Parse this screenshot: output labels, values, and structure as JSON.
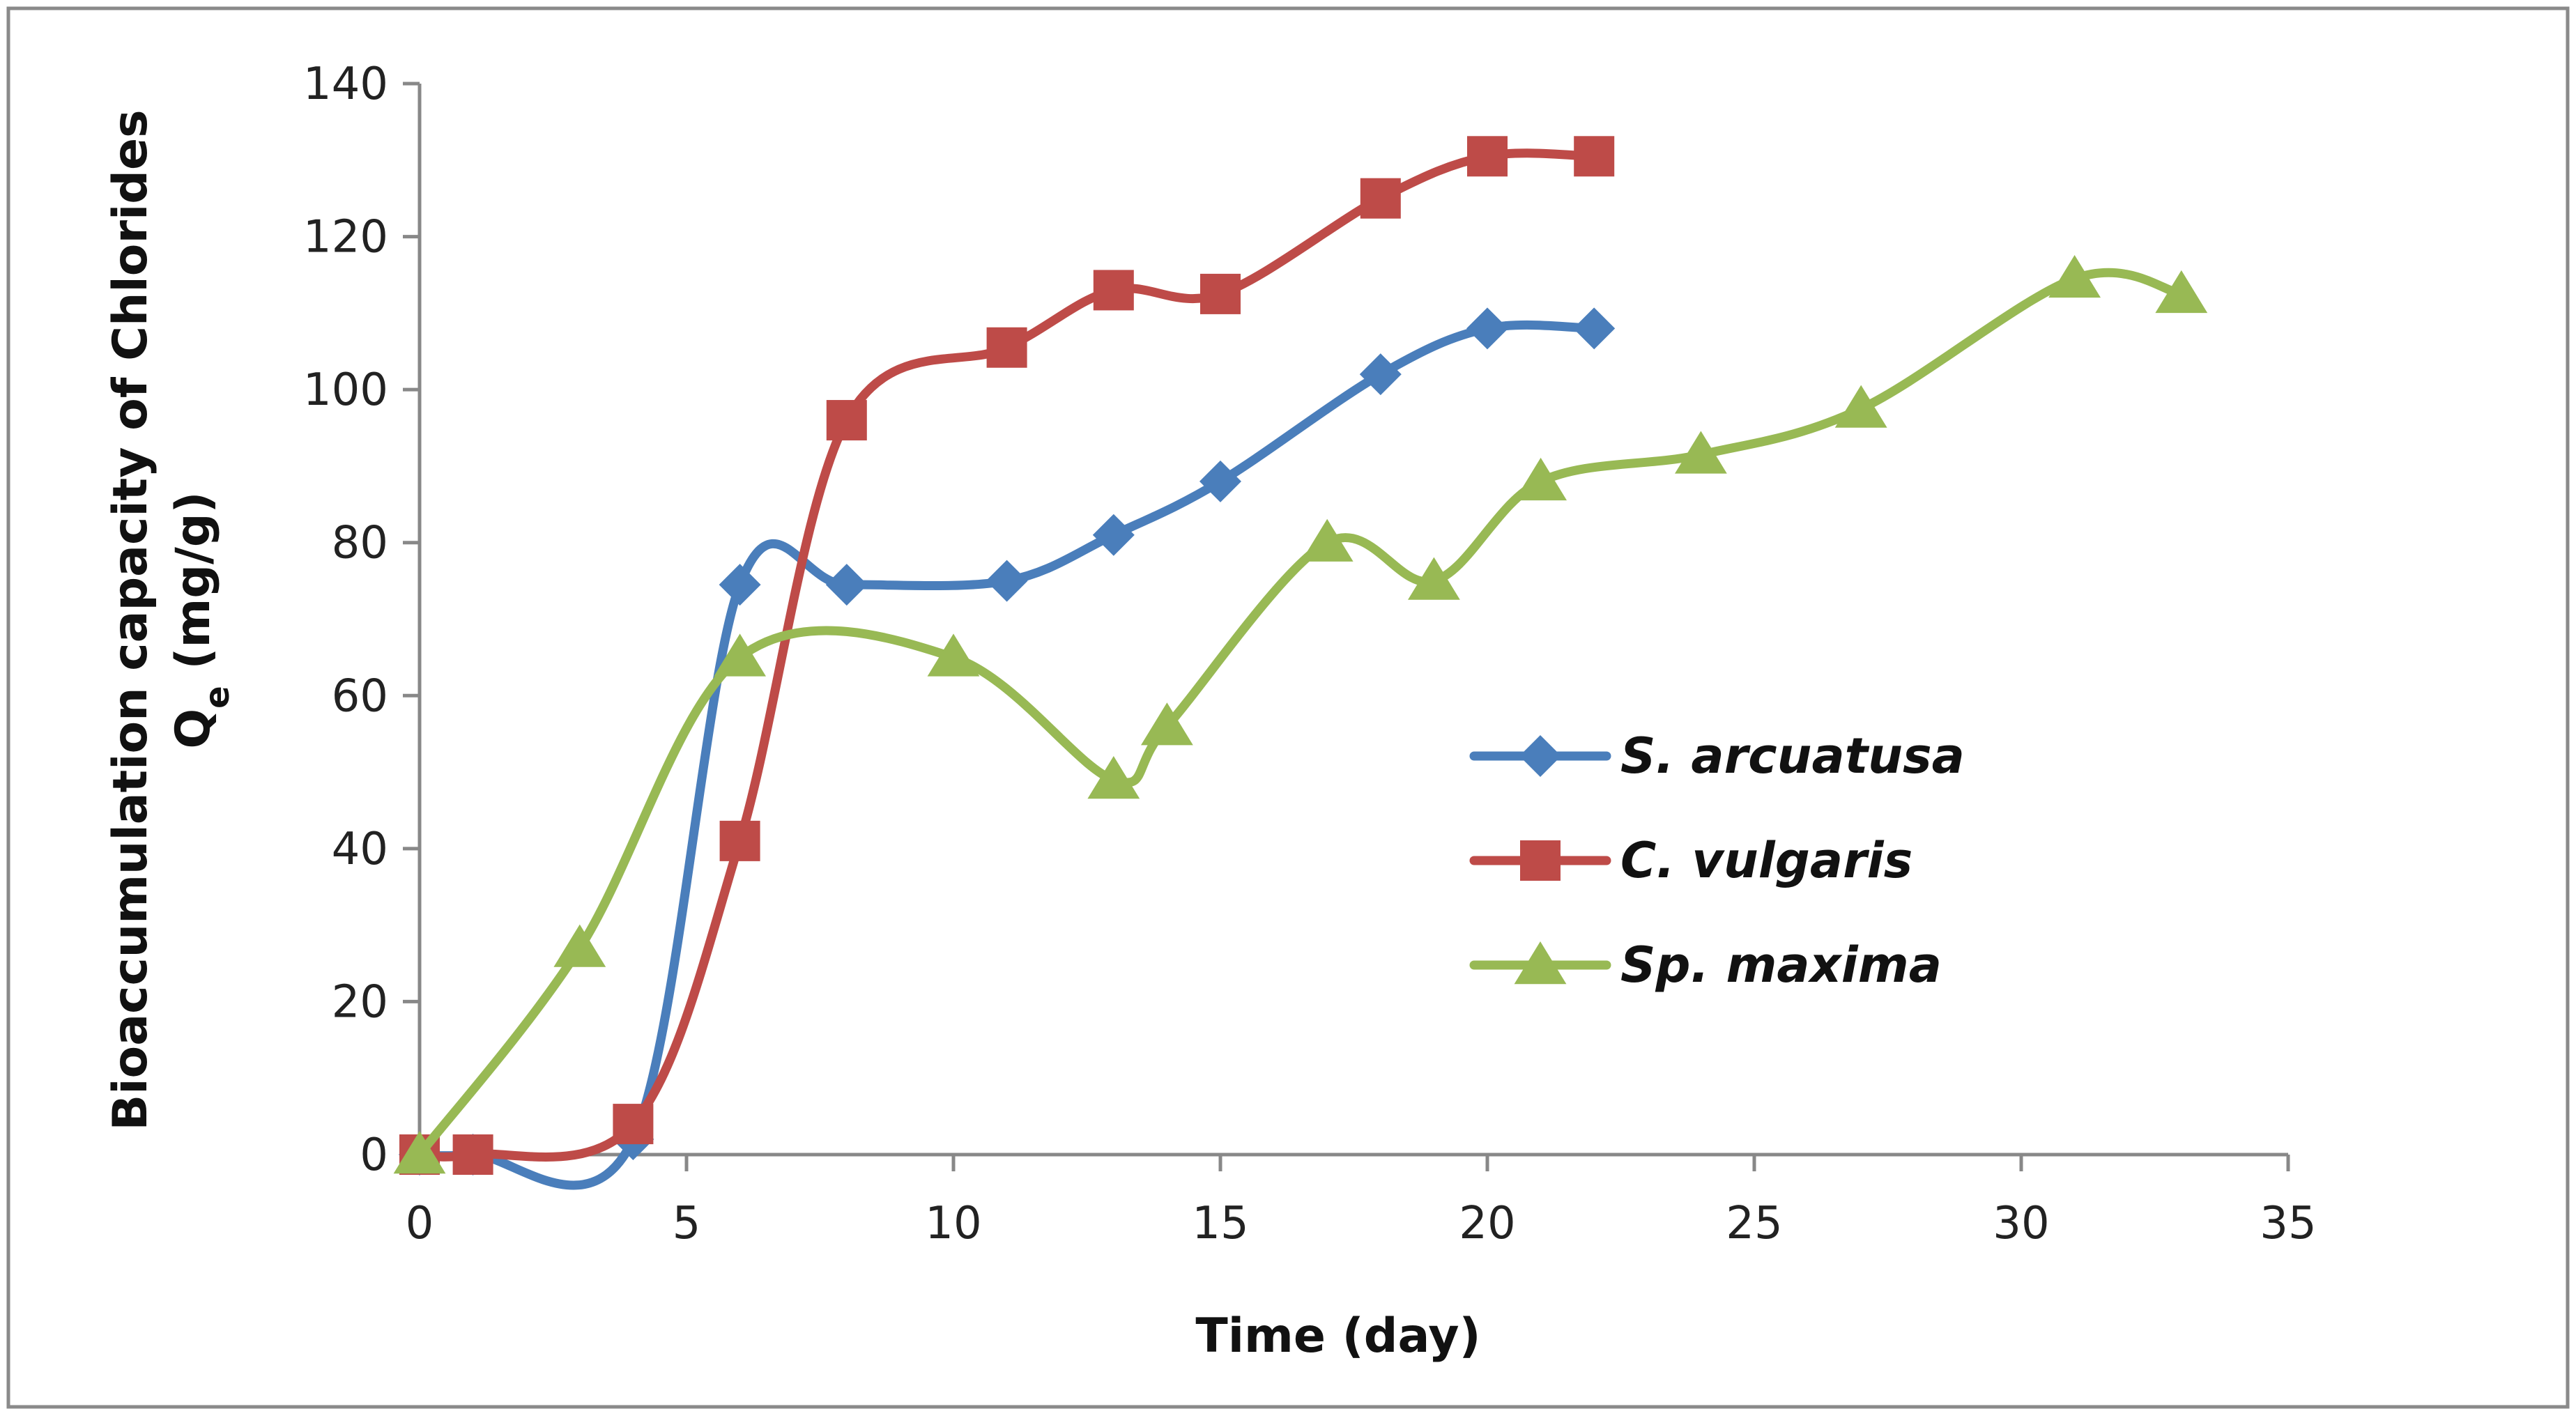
{
  "chart_data": {
    "type": "line",
    "title": "",
    "xlabel": "Time (day)",
    "ylabel": {
      "line1": "Bioaccumulation capacity of Chlorides",
      "line2_main": "Q",
      "line2_sub": "e",
      "line2_rest": " (mg/g)"
    },
    "xlim": [
      0,
      35
    ],
    "ylim": [
      0,
      140
    ],
    "x_ticks": [
      0,
      5,
      10,
      15,
      20,
      25,
      30,
      35
    ],
    "y_ticks": [
      0,
      20,
      40,
      60,
      80,
      100,
      120,
      140
    ],
    "grid": false,
    "smooth": true,
    "legend_position": "center-right",
    "series": [
      {
        "name": "S. arcuatusa",
        "color": "#4a7ebb",
        "marker": "diamond",
        "x": [
          0,
          1,
          4,
          6,
          8,
          11,
          13,
          15,
          18,
          20,
          22
        ],
        "y": [
          0,
          0,
          2,
          74.5,
          74.5,
          75,
          81,
          88,
          102,
          108,
          108
        ]
      },
      {
        "name": "C. vulgaris",
        "color": "#be4b48",
        "marker": "square",
        "x": [
          0,
          1,
          4,
          6,
          8,
          11,
          13,
          15,
          18,
          20,
          22
        ],
        "y": [
          0,
          0,
          4,
          41,
          96,
          105.5,
          113,
          112.5,
          125,
          130.5,
          130.5
        ]
      },
      {
        "name": "Sp. maxima",
        "color": "#98b954",
        "marker": "triangle",
        "x": [
          0,
          3,
          6,
          10,
          13,
          14,
          17,
          19,
          21,
          24,
          27,
          31,
          33
        ],
        "y": [
          0,
          27,
          65,
          65,
          49,
          56,
          80,
          75,
          88,
          91.5,
          97.5,
          114.5,
          112.5
        ]
      }
    ]
  }
}
